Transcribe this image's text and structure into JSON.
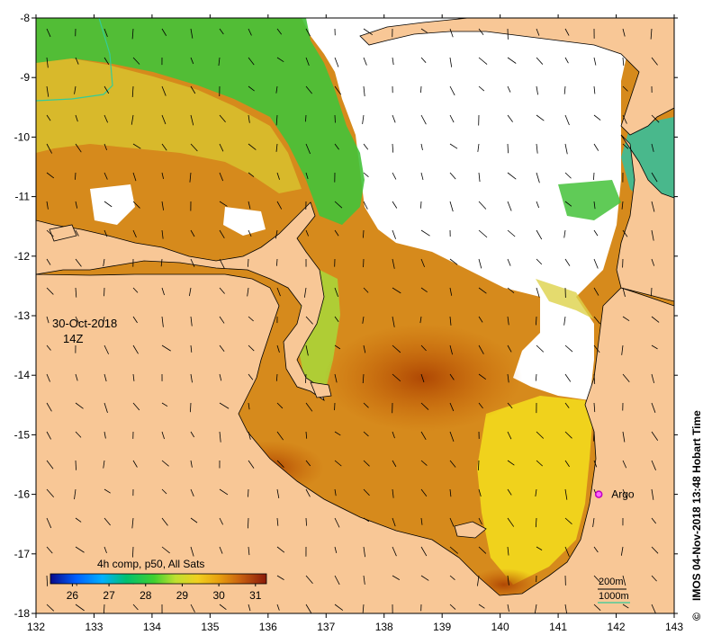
{
  "map": {
    "date_label": "30-Oct-2018",
    "time_label": "14Z",
    "credit": "IMOS 04-Nov-2018 13:48 Hobart Time",
    "copyright": "©",
    "argo_label": "Argo",
    "argo_position": {
      "lon": 141.7,
      "lat": -16.0
    },
    "lon_range": [
      132,
      143
    ],
    "lat_range": [
      -18,
      -8
    ],
    "lon_ticks": [
      "132",
      "133",
      "134",
      "135",
      "136",
      "137",
      "138",
      "139",
      "140",
      "141",
      "142",
      "143"
    ],
    "lat_ticks": [
      "-8",
      "-9",
      "-10",
      "-11",
      "-12",
      "-13",
      "-14",
      "-15",
      "-16",
      "-17",
      "-18"
    ],
    "contours": [
      {
        "label": "200m",
        "color": "#000000"
      },
      {
        "label": "1000m",
        "color": "#33cc99"
      }
    ],
    "colors": {
      "land": "#f8c796",
      "no_data": "#ffffff",
      "argo": "#e000e0"
    }
  },
  "colorbar": {
    "title": "4h comp, p50, All Sats",
    "ticks": [
      "26",
      "27",
      "28",
      "29",
      "30",
      "31"
    ],
    "range": [
      25.4,
      31.3
    ],
    "tick_values": [
      26,
      27,
      28,
      29,
      30,
      31
    ]
  }
}
